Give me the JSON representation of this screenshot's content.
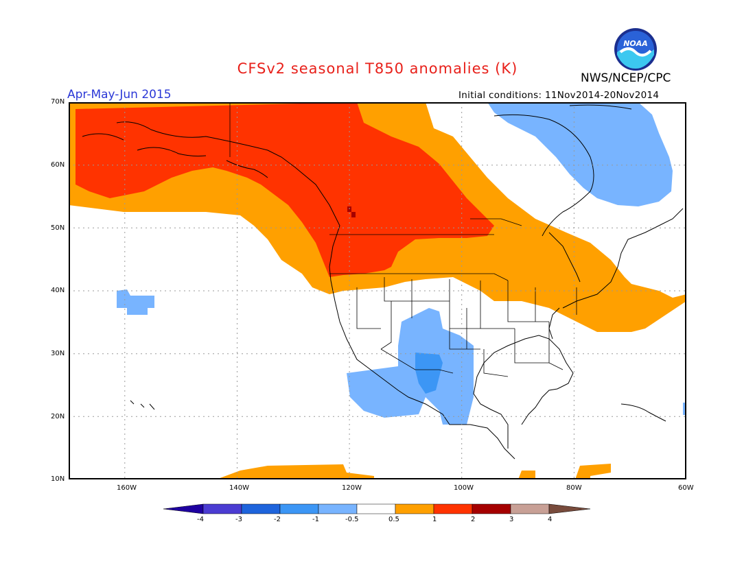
{
  "header": {
    "title": "CFSv2 seasonal T850 anomalies (K)",
    "agency": "NWS/NCEP/CPC",
    "logo_text": "NOAA",
    "period": "Apr-May-Jun 2015",
    "initial_conditions": "Initial conditions: 11Nov2014-20Nov2014"
  },
  "map": {
    "region": "North America and eastern Pacific",
    "lat_range": [
      10,
      70
    ],
    "lon_range": [
      -170,
      -60
    ],
    "lat_labels": [
      "70N",
      "60N",
      "50N",
      "40N",
      "30N",
      "20N",
      "10N"
    ],
    "lon_labels": [
      "160W",
      "140W",
      "120W",
      "100W",
      "80W",
      "60W"
    ],
    "anomaly_regions": [
      {
        "name": "warm-core-northwest",
        "category": "1 to 2",
        "color": "#ff3300",
        "area": "Alaska, Yukon, western Canadian interior"
      },
      {
        "name": "warm-max-saskatchewan",
        "category": "2 to 3",
        "color": "#a50000",
        "area": "small spot near 53N 120W"
      },
      {
        "name": "warm-band",
        "category": "0.5 to 1",
        "color": "#ffa000",
        "area": "surrounding band across Canada, northern US, Great Lakes and US East Coast"
      },
      {
        "name": "warm-pacific-south",
        "category": "0.5 to 1",
        "color": "#ffa000",
        "area": "near 10N 140-120W"
      },
      {
        "name": "cool-hudson-labrador",
        "category": "-1 to -0.5",
        "color": "#78b4ff",
        "area": "Hudson Bay to Labrador"
      },
      {
        "name": "cool-mexico",
        "category": "-1 to -0.5",
        "color": "#78b4ff",
        "area": "US Southwest and Mexico"
      },
      {
        "name": "cool-mexico-core",
        "category": "-2 to -1",
        "color": "#3c96f5",
        "area": "northern Mexico"
      },
      {
        "name": "cool-pacific",
        "category": "-1 to -0.5",
        "color": "#78b4ff",
        "area": "near 38N 158W"
      }
    ]
  },
  "colorbar": {
    "labels": [
      "-4",
      "-3",
      "-2",
      "-1",
      "-0.5",
      "0.5",
      "1",
      "2",
      "3",
      "4"
    ],
    "colors": [
      "#1e00a0",
      "#4b3cd2",
      "#1e64dc",
      "#3c96f5",
      "#78b4ff",
      "#ffffff",
      "#ffa000",
      "#ff3300",
      "#a50000",
      "#c8a096",
      "#784b3c"
    ]
  }
}
